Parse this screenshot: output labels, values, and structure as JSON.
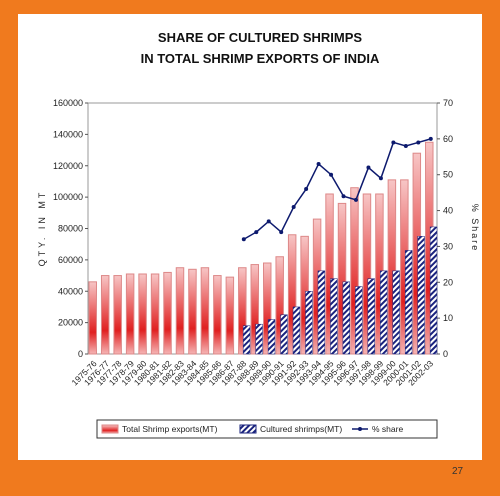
{
  "chart_data": {
    "type": "bar",
    "title": [
      "SHARE OF CULTURED SHRIMPS",
      "IN TOTAL SHRIMP EXPORTS OF INDIA"
    ],
    "y_label": "QTY. IN MT",
    "y2_label": "% Share",
    "categories": [
      "1975-76",
      "1976-77",
      "1977-78",
      "1978-79",
      "1979-80",
      "1980-81",
      "1981-82",
      "1982-83",
      "1983-84",
      "1984-85",
      "1985-86",
      "1986-87",
      "1987-88",
      "1988-89",
      "1989-90",
      "1990-91",
      "1991-92",
      "1992-93",
      "1993-94",
      "1994-95",
      "1995-96",
      "1996-97",
      "1997-98",
      "1998-99",
      "1999-00",
      "2000-01",
      "2001-02",
      "2002-03"
    ],
    "series": [
      {
        "name": "Total Shrimp exports(MT)",
        "type": "bar",
        "color": "#e02020",
        "values": [
          46000,
          50000,
          50000,
          51000,
          51000,
          51000,
          52000,
          55000,
          54000,
          55000,
          50000,
          49000,
          55000,
          57000,
          58000,
          62000,
          76000,
          75000,
          86000,
          102000,
          96000,
          106000,
          102000,
          102000,
          111000,
          111000,
          128000,
          135000
        ]
      },
      {
        "name": "Cultured shrimps(MT)",
        "type": "hatched",
        "color": "#1a237e",
        "values": [
          null,
          null,
          null,
          null,
          null,
          null,
          null,
          null,
          null,
          null,
          null,
          null,
          18000,
          19000,
          22000,
          25000,
          30000,
          40000,
          53000,
          48000,
          46000,
          43000,
          48000,
          53000,
          53000,
          66000,
          75000,
          81000
        ]
      },
      {
        "name": "% share",
        "type": "line",
        "axis": "y2",
        "color": "#0d1a6e",
        "values": [
          null,
          null,
          null,
          null,
          null,
          null,
          null,
          null,
          null,
          null,
          null,
          null,
          32,
          34,
          37,
          34,
          41,
          46,
          53,
          50,
          44,
          43,
          52,
          49,
          59,
          58,
          59,
          60
        ]
      }
    ],
    "ylim": [
      0,
      160000
    ],
    "yticks": [
      0,
      20000,
      40000,
      60000,
      80000,
      100000,
      120000,
      140000,
      160000
    ],
    "y2lim": [
      0,
      70
    ],
    "y2ticks": [
      0,
      10,
      20,
      30,
      40,
      50,
      60,
      70
    ]
  },
  "slide": {
    "page_number": "27"
  }
}
